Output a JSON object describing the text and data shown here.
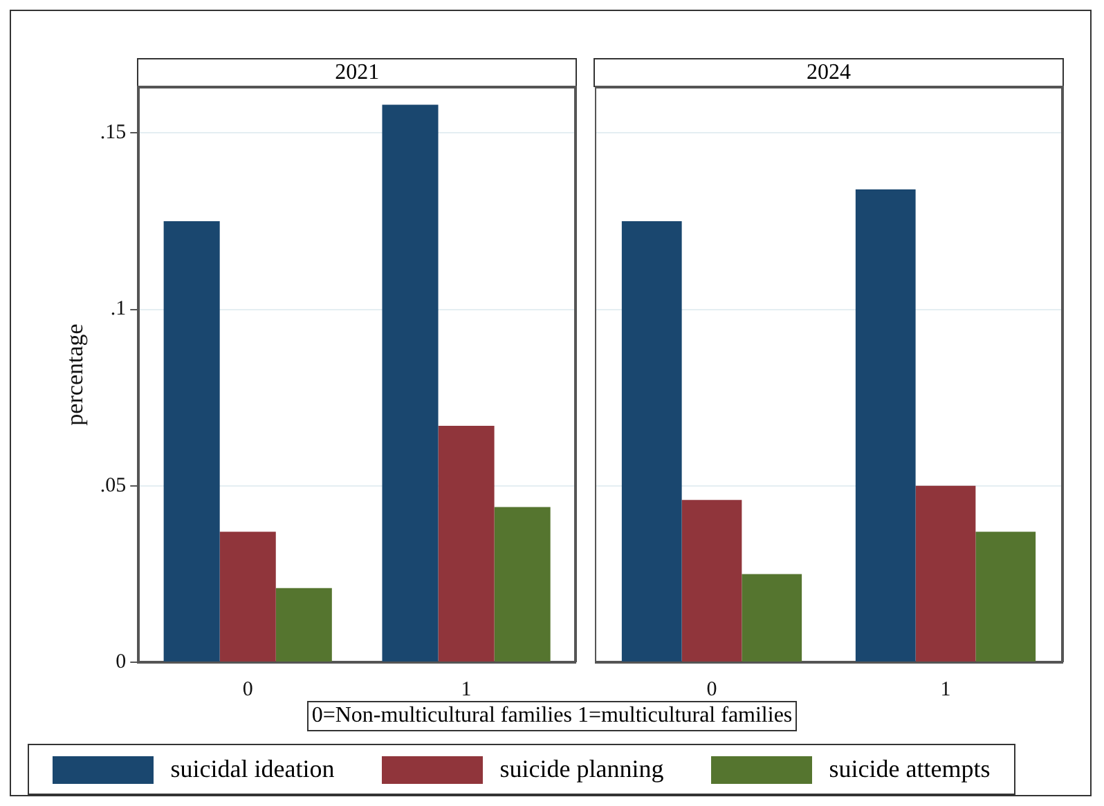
{
  "chart_data": [
    {
      "type": "bar",
      "title": "2021",
      "ylabel": "percentage",
      "xlabel": "0=Non-multicultural families  1=multicultural families",
      "categories": [
        "0",
        "1"
      ],
      "series": [
        {
          "name": "suicidal ideation",
          "color": "#1a476f",
          "values": [
            0.125,
            0.158
          ]
        },
        {
          "name": "suicide planning",
          "color": "#90353b",
          "values": [
            0.037,
            0.067
          ]
        },
        {
          "name": "suicide attempts",
          "color": "#55752f",
          "values": [
            0.021,
            0.044
          ]
        }
      ],
      "ylim": [
        0,
        0.163
      ],
      "yticks": [
        0,
        {
          "value": 0.05,
          "label": ".05"
        },
        {
          "value": 0.1,
          "label": ".1"
        },
        {
          "value": 0.15,
          "label": ".15"
        }
      ],
      "grid": "y",
      "legend": "bottom"
    },
    {
      "type": "bar",
      "title": "2024",
      "categories": [
        "0",
        "1"
      ],
      "series": [
        {
          "color": "#1a476f",
          "values": [
            0.125,
            0.134
          ]
        },
        {
          "color": "#90353b",
          "values": [
            0.046,
            0.05
          ]
        },
        {
          "color": "#55752f",
          "values": [
            0.025,
            0.037
          ]
        }
      ],
      "ylim": [
        0,
        0.163
      ],
      "yticks": [
        0,
        0.05,
        0.1,
        0.15
      ],
      "grid": "y",
      "tick_labels": "x"
    }
  ]
}
